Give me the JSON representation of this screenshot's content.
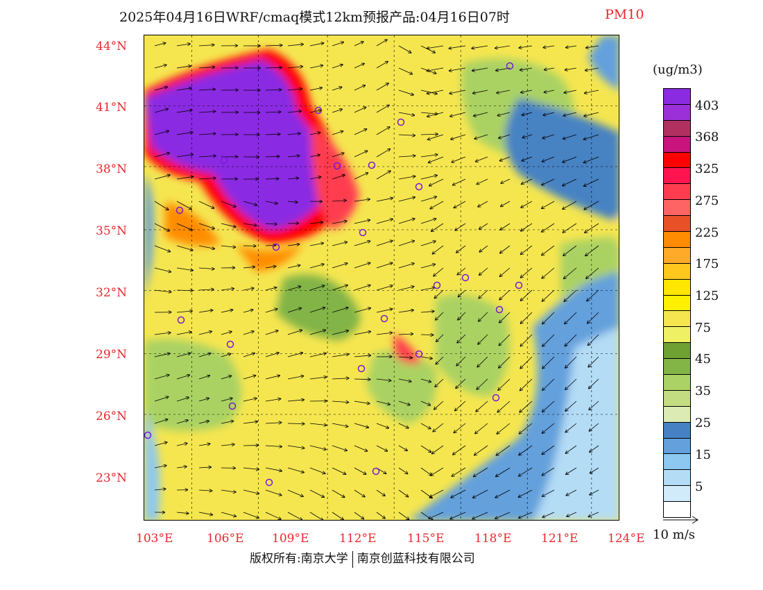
{
  "title": {
    "main": "2025年04月16日WRF/cmaq模式12km预报产品:04月16日07时",
    "product": "PM10"
  },
  "colors": {
    "accent_red": "#e8282d"
  },
  "axes": {
    "lat_labels": [
      "44°N",
      "41°N",
      "38°N",
      "35°N",
      "32°N",
      "29°N",
      "26°N",
      "23°N"
    ],
    "lon_labels": [
      "103°E",
      "106°E",
      "109°E",
      "112°E",
      "115°E",
      "118°E",
      "121°E",
      "124°E"
    ],
    "lat_range": [
      21,
      44.3
    ],
    "lon_range": [
      102.7,
      124
    ]
  },
  "colorbar": {
    "unit": "(ug/m3)",
    "colors": [
      "#8a2be2",
      "#9b30d8",
      "#b03060",
      "#c8147c",
      "#ff0000",
      "#ff1450",
      "#ff3c50",
      "#ff6464",
      "#e85028",
      "#ff8c00",
      "#ffaa28",
      "#ffc81e",
      "#ffe600",
      "#fff000",
      "#f5e650",
      "#f0f064",
      "#6ea032",
      "#82b446",
      "#aad264",
      "#c3dc82",
      "#dceab4",
      "#4682c3",
      "#64a0dc",
      "#8cc8f0",
      "#b4dcf5",
      "#d2ebfa",
      "#ffffff"
    ],
    "labels": [
      "403",
      "368",
      "325",
      "275",
      "225",
      "175",
      "125",
      "75",
      "45",
      "35",
      "25",
      "15",
      "5"
    ]
  },
  "wind_reference": "10 m/s",
  "copyright": {
    "left": "版权所有:南京大学",
    "right": "南京创蓝科技有限公司"
  }
}
